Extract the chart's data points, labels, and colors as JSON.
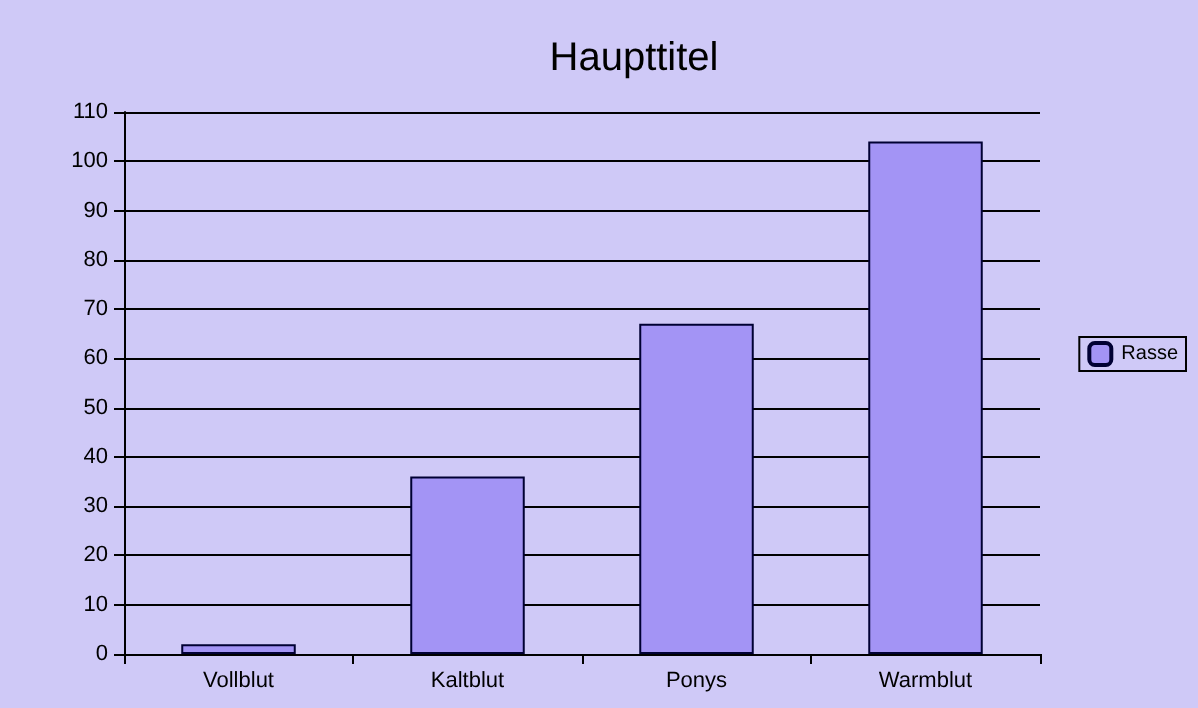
{
  "chart_data": {
    "type": "bar",
    "title": "Haupttitel",
    "categories": [
      "Vollblut",
      "Kaltblut",
      "Ponys",
      "Warmblut"
    ],
    "series": [
      {
        "name": "Rasse",
        "color": "#a394f5",
        "values": [
          2,
          36,
          67,
          104
        ]
      }
    ],
    "ylim": [
      0,
      110
    ],
    "yticks": [
      0,
      10,
      20,
      30,
      40,
      50,
      60,
      70,
      80,
      90,
      100,
      110
    ],
    "grid": "y",
    "legend": "right"
  }
}
